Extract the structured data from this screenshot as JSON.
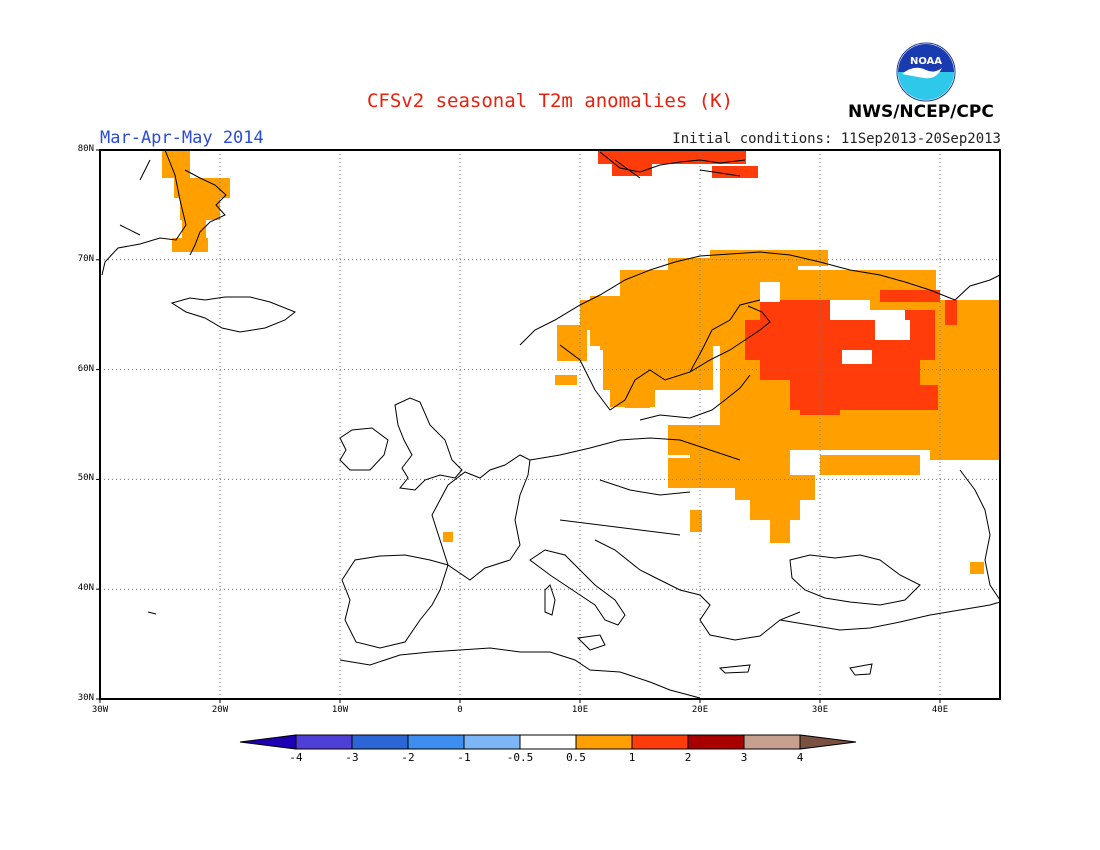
{
  "header": {
    "title": "CFSv2 seasonal T2m anomalies (K)",
    "season": "Mar-Apr-May 2014",
    "initial_conditions": "Initial conditions: 11Sep2013-20Sep2013",
    "agency": "NWS/NCEP/CPC",
    "logo_text": "NOAA"
  },
  "map": {
    "lat_labels": [
      "80N",
      "70N",
      "60N",
      "50N",
      "40N",
      "30N"
    ],
    "lon_labels": [
      "30W",
      "20W",
      "10W",
      "0",
      "10E",
      "20E",
      "30E",
      "40E"
    ],
    "colors": {
      "orange": "#ffa000",
      "red": "#ff3c0a",
      "coast": "#000000",
      "grid": "#777777"
    }
  },
  "colorbar": {
    "labels": [
      "-4",
      "-3",
      "-2",
      "-1",
      "-0.5",
      "0.5",
      "1",
      "2",
      "3",
      "4"
    ],
    "colors": [
      "#1e00b4",
      "#4f3fd6",
      "#2c66d6",
      "#3d8ef0",
      "#7cb6f6",
      "#ffffff",
      "#ffa000",
      "#ff3c0a",
      "#a80000",
      "#c8a090",
      "#7a5040"
    ]
  }
}
